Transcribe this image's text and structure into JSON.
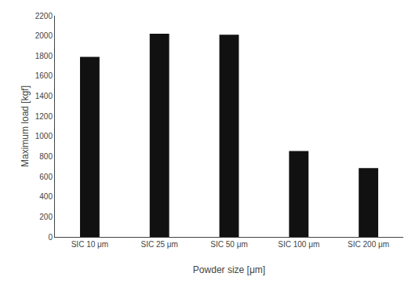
{
  "chart_data": {
    "type": "bar",
    "categories": [
      "SIC 10 μm",
      "SIC 25 μm",
      "SIC 50 μm",
      "SIC 100 μm",
      "SIC 200 μm"
    ],
    "values": [
      1790,
      2020,
      2010,
      855,
      685
    ],
    "color": "#111111",
    "xlabel": "Powder size [μm]",
    "ylabel": "Maximum load [kgf]",
    "ylim": [
      0,
      2200
    ],
    "yticks": [
      0,
      200,
      400,
      600,
      800,
      1000,
      1200,
      1400,
      1600,
      1800,
      2000,
      2200
    ],
    "grid": false
  }
}
